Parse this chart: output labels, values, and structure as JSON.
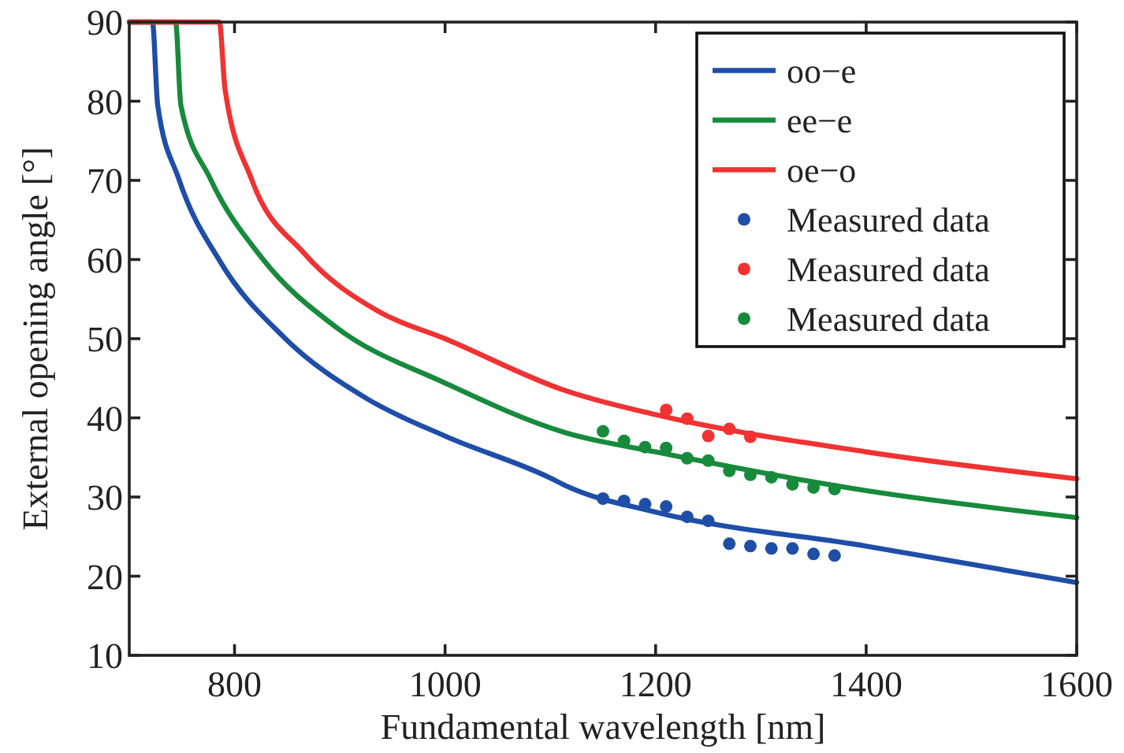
{
  "chart_data": {
    "type": "line",
    "xlabel": "Fundamental wavelength [nm]",
    "ylabel": "External opening angle [°]",
    "xlim": [
      700,
      1600
    ],
    "xticks": [
      800,
      1000,
      1200,
      1400,
      1600
    ],
    "ylim": [
      10,
      90
    ],
    "yticks": [
      10,
      20,
      30,
      40,
      50,
      60,
      70,
      80,
      90
    ],
    "grid": false,
    "legend": "top right",
    "line_style": "solid",
    "series": [
      {
        "name": "oo−e",
        "type": "line",
        "color": "#1f4ea8",
        "x": [
          700,
          722,
          727,
          747,
          787,
          846,
          926,
          1000,
          1100,
          1115,
          1200,
          1400,
          1600
        ],
        "values": [
          90,
          90,
          79.5,
          70.2,
          59.6,
          50.3,
          42.4,
          37.7,
          32.4,
          31.4,
          28.1,
          23.8,
          19.2
        ]
      },
      {
        "name": "ee−e",
        "type": "line",
        "color": "#188a3c",
        "x": [
          700,
          744,
          749,
          777,
          826,
          896,
          1000,
          1115,
          1200,
          1400,
          1600
        ],
        "values": [
          90,
          90,
          79.5,
          70.2,
          60.2,
          51.5,
          44.4,
          38.1,
          35.7,
          30.8,
          27.4
        ]
      },
      {
        "name": "oe−o",
        "type": "line",
        "color": "#f03232",
        "x": [
          700,
          785.5,
          791,
          816,
          866,
          936,
          1000,
          1115,
          1200,
          1400,
          1600
        ],
        "values": [
          90,
          90,
          81.5,
          70.2,
          60.8,
          53.5,
          50,
          43.4,
          40.4,
          35.7,
          32.3
        ]
      },
      {
        "name": "Measured data",
        "type": "scatter",
        "marker": "circle",
        "color": "#1f4ea8",
        "x": [
          1150,
          1170,
          1190,
          1210,
          1230,
          1250,
          1270,
          1290,
          1310,
          1330,
          1350,
          1370
        ],
        "values": [
          29.8,
          29.5,
          29.1,
          28.8,
          27.5,
          27.0,
          24.1,
          23.8,
          23.5,
          23.5,
          22.8,
          22.6
        ]
      },
      {
        "name": "Measured data",
        "type": "scatter",
        "marker": "circle",
        "color": "#f03232",
        "x": [
          1210,
          1230,
          1250,
          1270,
          1290
        ],
        "values": [
          41.0,
          39.9,
          37.7,
          38.6,
          37.6
        ]
      },
      {
        "name": "Measured data",
        "type": "scatter",
        "marker": "circle",
        "color": "#188a3c",
        "x": [
          1150,
          1170,
          1190,
          1210,
          1230,
          1250,
          1270,
          1290,
          1310,
          1330,
          1350,
          1370
        ],
        "values": [
          38.3,
          37.1,
          36.3,
          36.2,
          34.9,
          34.6,
          33.3,
          32.8,
          32.5,
          31.6,
          31.2,
          31.0
        ]
      }
    ]
  }
}
